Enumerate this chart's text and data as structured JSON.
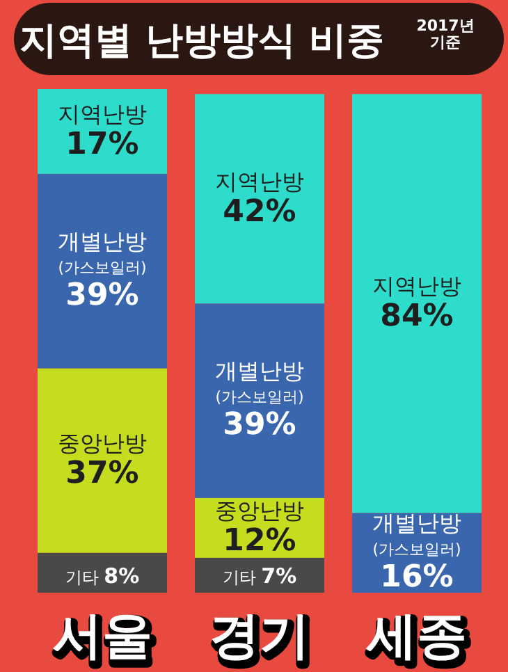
{
  "chart_data": {
    "type": "bar",
    "stacked": true,
    "title": "지역별 난방방식 비중",
    "subtitle": "2017년 기준",
    "categories": [
      "서울",
      "경기",
      "세종"
    ],
    "series": [
      {
        "name": "기타",
        "color": "#4a4848",
        "values": [
          8,
          7,
          null
        ],
        "value_labels": [
          "8%",
          "7%",
          null
        ]
      },
      {
        "name": "중앙난방",
        "color": "#c6dc1f",
        "values": [
          37,
          12,
          null
        ],
        "value_labels": [
          "37%",
          "12%",
          null
        ]
      },
      {
        "name": "개별난방 (가스보일러)",
        "color": "#3a66ad",
        "values": [
          39,
          39,
          16
        ],
        "value_labels": [
          "39%",
          "39%",
          "16%"
        ]
      },
      {
        "name": "지역난방",
        "color": "#2edccb",
        "values": [
          17,
          42,
          84
        ],
        "value_labels": [
          "17%",
          "42%",
          "84%"
        ]
      }
    ]
  }
}
